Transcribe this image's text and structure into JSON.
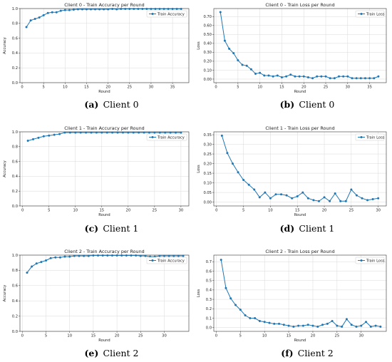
{
  "chart_data": [
    {
      "type": "line",
      "title": "Client 0 - Train Accuracy per Round",
      "xlabel": "Round",
      "ylabel": "Accuracy",
      "legend": "Train Accuracy",
      "legend_position": "top-right",
      "grid": true,
      "xlim": [
        -0.5,
        38.8
      ],
      "ylim": [
        0,
        1.0
      ],
      "xticks": [
        0,
        5,
        10,
        15,
        20,
        25,
        30,
        35
      ],
      "yticks": [
        0.0,
        0.2,
        0.4,
        0.6,
        0.8,
        1.0
      ],
      "x": [
        1,
        2,
        3,
        4,
        5,
        6,
        7,
        8,
        9,
        10,
        11,
        12,
        13,
        14,
        15,
        16,
        17,
        18,
        19,
        20,
        21,
        22,
        23,
        24,
        25,
        26,
        27,
        28,
        29,
        30,
        31,
        32,
        33,
        34,
        35,
        36,
        37
      ],
      "values": [
        0.75,
        0.84,
        0.86,
        0.88,
        0.91,
        0.94,
        0.95,
        0.95,
        0.97,
        0.98,
        0.98,
        0.985,
        0.99,
        0.99,
        0.99,
        0.99,
        0.99,
        0.99,
        0.99,
        0.99,
        0.995,
        0.99,
        0.995,
        0.995,
        0.995,
        0.995,
        0.995,
        0.995,
        0.995,
        0.995,
        0.995,
        0.995,
        0.995,
        0.995,
        0.995,
        0.995,
        0.995
      ],
      "caption_label": "(a)",
      "caption_text": "Client 0"
    },
    {
      "type": "line",
      "title": "Client 0 - Train Loss per Round",
      "xlabel": "Round",
      "ylabel": "Loss",
      "legend": "Train Loss",
      "legend_position": "top-right",
      "grid": true,
      "xlim": [
        -0.5,
        38.8
      ],
      "ylim": [
        -0.04,
        0.79
      ],
      "xticks": [
        0,
        5,
        10,
        15,
        20,
        25,
        30,
        35
      ],
      "yticks": [
        0.0,
        0.1,
        0.2,
        0.3,
        0.4,
        0.5,
        0.6,
        0.7
      ],
      "yformat": 2,
      "x": [
        1,
        2,
        3,
        4,
        5,
        6,
        7,
        8,
        9,
        10,
        11,
        12,
        13,
        14,
        15,
        16,
        17,
        18,
        19,
        20,
        21,
        22,
        23,
        24,
        25,
        26,
        27,
        28,
        29,
        30,
        31,
        32,
        33,
        34,
        35,
        36,
        37
      ],
      "values": [
        0.75,
        0.43,
        0.34,
        0.29,
        0.21,
        0.16,
        0.15,
        0.11,
        0.06,
        0.07,
        0.04,
        0.04,
        0.03,
        0.04,
        0.02,
        0.03,
        0.05,
        0.03,
        0.03,
        0.03,
        0.02,
        0.01,
        0.03,
        0.03,
        0.03,
        0.01,
        0.01,
        0.03,
        0.03,
        0.03,
        0.01,
        0.01,
        0.01,
        0.01,
        0.01,
        0.01,
        0.03
      ],
      "caption_label": "(b)",
      "caption_text": "Client 0"
    },
    {
      "type": "line",
      "title": "Client 1 - Train Accuracy per Round",
      "xlabel": "Round",
      "ylabel": "Accuracy",
      "legend": "Train Accuracy",
      "legend_position": "top-right",
      "grid": true,
      "xlim": [
        -0.5,
        31.5
      ],
      "ylim": [
        0,
        1.0
      ],
      "xticks": [
        0,
        5,
        10,
        15,
        20,
        25,
        30
      ],
      "yticks": [
        0.0,
        0.2,
        0.4,
        0.6,
        0.8,
        1.0
      ],
      "x": [
        1,
        2,
        3,
        4,
        5,
        6,
        7,
        8,
        9,
        10,
        11,
        12,
        13,
        14,
        15,
        16,
        17,
        18,
        19,
        20,
        21,
        22,
        23,
        24,
        25,
        26,
        27,
        28,
        29,
        30
      ],
      "values": [
        0.88,
        0.9,
        0.92,
        0.94,
        0.95,
        0.96,
        0.97,
        0.99,
        0.99,
        0.99,
        0.99,
        0.99,
        0.99,
        0.99,
        0.99,
        0.99,
        0.99,
        0.99,
        0.99,
        0.99,
        0.99,
        0.99,
        0.99,
        0.99,
        0.99,
        0.99,
        0.99,
        0.99,
        0.99,
        0.99
      ],
      "caption_label": "(c)",
      "caption_text": "Client 1"
    },
    {
      "type": "line",
      "title": "Client 1 - Train Loss per Round",
      "xlabel": "Round",
      "ylabel": "Loss",
      "legend": "Train Loss",
      "legend_position": "top-right",
      "grid": true,
      "xlim": [
        -0.5,
        31.5
      ],
      "ylim": [
        -0.02,
        0.365
      ],
      "xticks": [
        0,
        5,
        10,
        15,
        20,
        25,
        30
      ],
      "yticks": [
        0.0,
        0.05,
        0.1,
        0.15,
        0.2,
        0.25,
        0.3,
        0.35
      ],
      "yformat": 2,
      "x": [
        1,
        2,
        3,
        4,
        5,
        6,
        7,
        8,
        9,
        10,
        11,
        12,
        13,
        14,
        15,
        16,
        17,
        18,
        19,
        20,
        21,
        22,
        23,
        24,
        25,
        26,
        27,
        28,
        29,
        30
      ],
      "values": [
        0.345,
        0.255,
        0.2,
        0.155,
        0.115,
        0.09,
        0.065,
        0.025,
        0.05,
        0.02,
        0.04,
        0.04,
        0.035,
        0.02,
        0.03,
        0.05,
        0.02,
        0.01,
        0.005,
        0.025,
        0.005,
        0.045,
        0.005,
        0.005,
        0.065,
        0.035,
        0.02,
        0.01,
        0.015,
        0.02
      ],
      "caption_label": "(d)",
      "caption_text": "Client 1"
    },
    {
      "type": "line",
      "title": "Client 2 - Train Accuracy per Round",
      "xlabel": "Round",
      "ylabel": "Accuracy",
      "legend": "Train Accuracy",
      "legend_position": "top-right",
      "grid": true,
      "xlim": [
        -0.5,
        35.2
      ],
      "ylim": [
        0,
        1.0
      ],
      "xticks": [
        0,
        5,
        10,
        15,
        20,
        25,
        30
      ],
      "yticks": [
        0.0,
        0.2,
        0.4,
        0.6,
        0.8,
        1.0
      ],
      "x": [
        1,
        2,
        3,
        4,
        5,
        6,
        7,
        8,
        9,
        10,
        11,
        12,
        13,
        14,
        15,
        16,
        17,
        18,
        19,
        20,
        21,
        22,
        23,
        24,
        25,
        26,
        27,
        28,
        29,
        30,
        31,
        32,
        33,
        34
      ],
      "values": [
        0.77,
        0.85,
        0.89,
        0.91,
        0.93,
        0.96,
        0.97,
        0.97,
        0.98,
        0.98,
        0.99,
        0.99,
        0.99,
        0.99,
        0.995,
        0.995,
        0.995,
        0.995,
        0.995,
        0.995,
        0.995,
        0.995,
        0.995,
        0.995,
        0.99,
        0.99,
        0.98,
        0.98,
        0.99,
        0.99,
        0.99,
        0.99,
        0.99,
        0.99
      ],
      "caption_label": "(e)",
      "caption_text": "Client 2"
    },
    {
      "type": "line",
      "title": "Client 2 - Train Loss per Round",
      "xlabel": "Round",
      "ylabel": "Loss",
      "legend": "Train Loss",
      "legend_position": "top-right",
      "grid": true,
      "xlim": [
        -0.5,
        35.2
      ],
      "ylim": [
        -0.04,
        0.77
      ],
      "xticks": [
        0,
        5,
        10,
        15,
        20,
        25,
        30
      ],
      "yticks": [
        0.0,
        0.1,
        0.2,
        0.3,
        0.4,
        0.5,
        0.6,
        0.7
      ],
      "yformat": 1,
      "x": [
        1,
        2,
        3,
        4,
        5,
        6,
        7,
        8,
        9,
        10,
        11,
        12,
        13,
        14,
        15,
        16,
        17,
        18,
        19,
        20,
        21,
        22,
        23,
        24,
        25,
        26,
        27,
        28,
        29,
        30,
        31,
        32,
        33,
        34
      ],
      "values": [
        0.72,
        0.42,
        0.31,
        0.24,
        0.19,
        0.13,
        0.1,
        0.1,
        0.07,
        0.06,
        0.05,
        0.04,
        0.04,
        0.03,
        0.02,
        0.01,
        0.02,
        0.02,
        0.03,
        0.02,
        0.01,
        0.03,
        0.04,
        0.07,
        0.02,
        0.01,
        0.09,
        0.03,
        0.01,
        0.02,
        0.06,
        0.01,
        0.02,
        0.01
      ],
      "caption_label": "(f)",
      "caption_text": "Client 2"
    }
  ],
  "colors": {
    "line": "#1f77b4",
    "grid": "#d9d9d9",
    "axis": "#333333"
  }
}
